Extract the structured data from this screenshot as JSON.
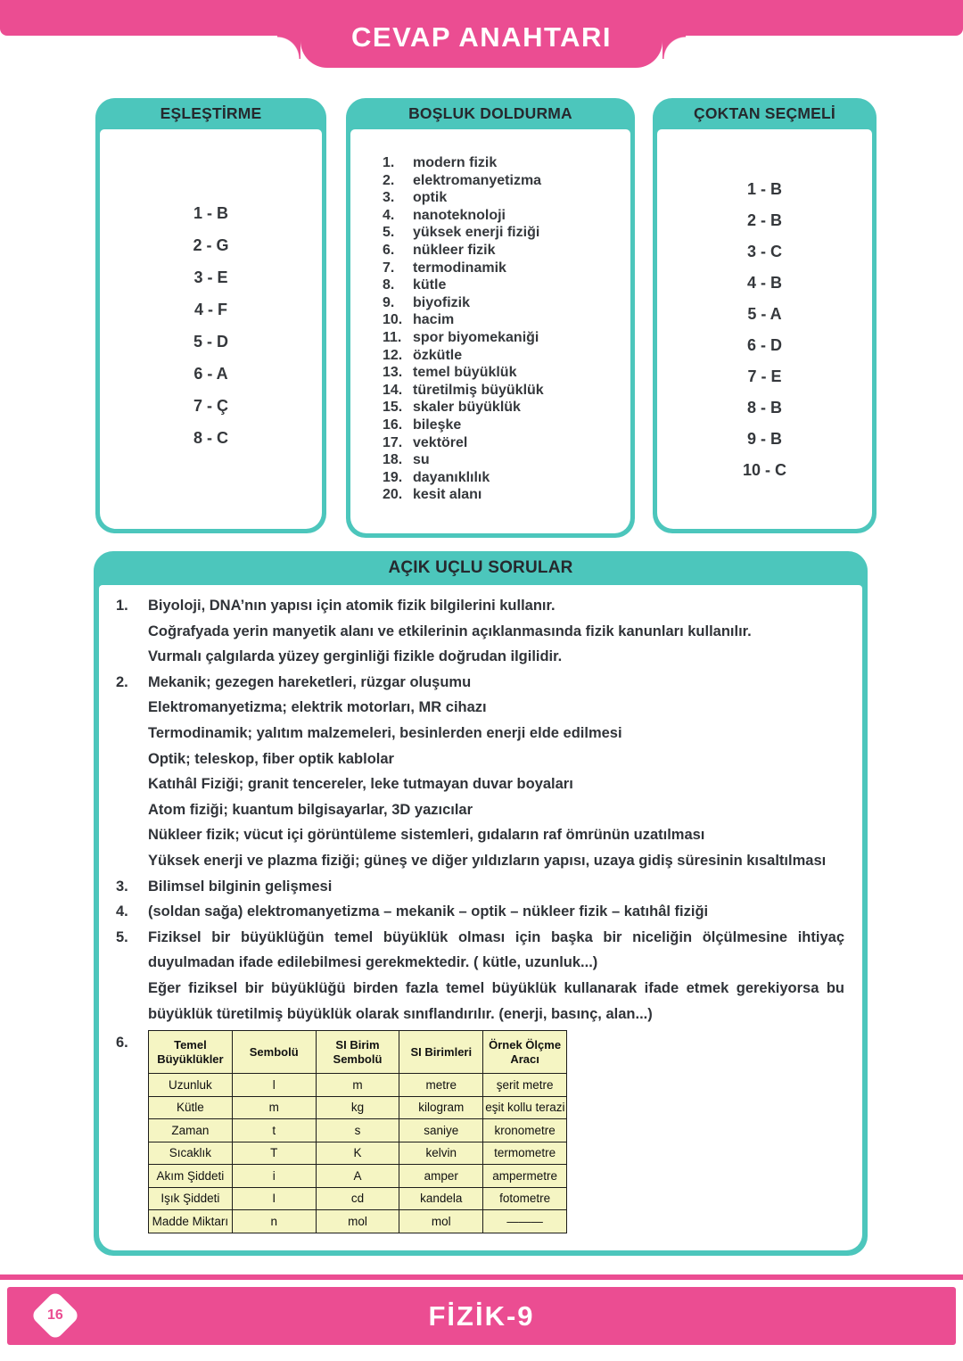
{
  "page": {
    "title": "CEVAP ANAHTARI",
    "footer_title": "FİZİK-9",
    "page_number": "16"
  },
  "colors": {
    "pink": "#EB4D92",
    "teal": "#4CC6BC",
    "table_background": "#F5F5C3"
  },
  "matching": {
    "title": "EŞLEŞTİRME",
    "answers": [
      "1 - B",
      "2 - G",
      "3 - E",
      "4 - F",
      "5 - D",
      "6 - A",
      "7 - Ç",
      "8 - C"
    ]
  },
  "fill_blank": {
    "title": "BOŞLUK DOLDURMA",
    "answers": [
      {
        "no": "1.",
        "text": "modern fizik"
      },
      {
        "no": "2.",
        "text": "elektromanyetizma"
      },
      {
        "no": "3.",
        "text": "optik"
      },
      {
        "no": "4.",
        "text": "nanoteknoloji"
      },
      {
        "no": "5.",
        "text": "yüksek enerji fiziği"
      },
      {
        "no": "6.",
        "text": "nükleer fizik"
      },
      {
        "no": "7.",
        "text": "termodinamik"
      },
      {
        "no": "8.",
        "text": "kütle"
      },
      {
        "no": "9.",
        "text": "biyofizik"
      },
      {
        "no": "10.",
        "text": "hacim"
      },
      {
        "no": "11.",
        "text": "spor biyomekaniği"
      },
      {
        "no": "12.",
        "text": "özkütle"
      },
      {
        "no": "13.",
        "text": "temel büyüklük"
      },
      {
        "no": "14.",
        "text": "türetilmiş büyüklük"
      },
      {
        "no": "15.",
        "text": "skaler büyüklük"
      },
      {
        "no": "16.",
        "text": "bileşke"
      },
      {
        "no": "17.",
        "text": "vektörel"
      },
      {
        "no": "18.",
        "text": "su"
      },
      {
        "no": "19.",
        "text": "dayanıklılık"
      },
      {
        "no": "20.",
        "text": "kesit alanı"
      }
    ]
  },
  "multiple_choice": {
    "title": "ÇOKTAN SEÇMELİ",
    "answers": [
      "1 - B",
      "2 - B",
      "3 - C",
      "4 - B",
      "5 - A",
      "6 - D",
      "7 - E",
      "8 - B",
      "9 - B",
      "10 - C"
    ]
  },
  "open_ended": {
    "title": "AÇIK UÇLU SORULAR",
    "items": [
      {
        "no": "1.",
        "lines": [
          "Biyoloji, DNA’nın yapısı için atomik fizik bilgilerini kullanır.",
          "Coğrafyada yerin manyetik alanı ve etkilerinin açıklanmasında fizik kanunları kullanılır.",
          "Vurmalı çalgılarda yüzey gerginliği fizikle doğrudan ilgilidir."
        ]
      },
      {
        "no": "2.",
        "lines": [
          "Mekanik; gezegen hareketleri, rüzgar oluşumu",
          "Elektromanyetizma; elektrik motorları, MR cihazı",
          "Termodinamik; yalıtım malzemeleri, besinlerden enerji elde edilmesi",
          "Optik; teleskop, fiber optik kablolar",
          "Katıhâl Fiziği; granit tencereler, leke tutmayan duvar boyaları",
          "Atom fiziği; kuantum bilgisayarlar, 3D yazıcılar",
          "Nükleer fizik; vücut içi görüntüleme sistemleri, gıdaların raf ömrünün uzatılması",
          "Yüksek enerji ve plazma fiziği; güneş ve diğer yıldızların yapısı, uzaya gidiş süresinin kısaltılması"
        ]
      },
      {
        "no": "3.",
        "lines": [
          "Bilimsel bilginin gelişmesi"
        ]
      },
      {
        "no": "4.",
        "lines": [
          "(soldan sağa) elektromanyetizma – mekanik – optik – nükleer fizik – katıhâl fiziği"
        ]
      },
      {
        "no": "5.",
        "lines": [
          "Fiziksel bir büyüklüğün temel büyüklük olması için başka bir niceliğin ölçülmesine ihtiyaç duyulmadan ifade edilebilmesi gerekmektedir. ( kütle, uzunluk...)",
          "Eğer fiziksel bir büyüklüğü birden fazla temel büyüklük kullanarak ifade etmek gerekiyorsa bu büyüklük türetilmiş büyüklük olarak sınıflandırılır. (enerji, basınç, alan...)"
        ]
      },
      {
        "no": "6.",
        "lines": []
      }
    ],
    "table": {
      "headers": [
        "Temel Büyüklükler",
        "Sembolü",
        "SI Birim Sembolü",
        "SI Birimleri",
        "Örnek Ölçme Aracı"
      ],
      "rows": [
        [
          "Uzunluk",
          "l",
          "m",
          "metre",
          "şerit metre"
        ],
        [
          "Kütle",
          "m",
          "kg",
          "kilogram",
          "eşit kollu terazi"
        ],
        [
          "Zaman",
          "t",
          "s",
          "saniye",
          "kronometre"
        ],
        [
          "Sıcaklık",
          "T",
          "K",
          "kelvin",
          "termometre"
        ],
        [
          "Akım Şiddeti",
          "i",
          "A",
          "amper",
          "ampermetre"
        ],
        [
          "Işık Şiddeti",
          "I",
          "cd",
          "kandela",
          "fotometre"
        ],
        [
          "Madde Miktarı",
          "n",
          "mol",
          "mol",
          "———"
        ]
      ]
    }
  }
}
